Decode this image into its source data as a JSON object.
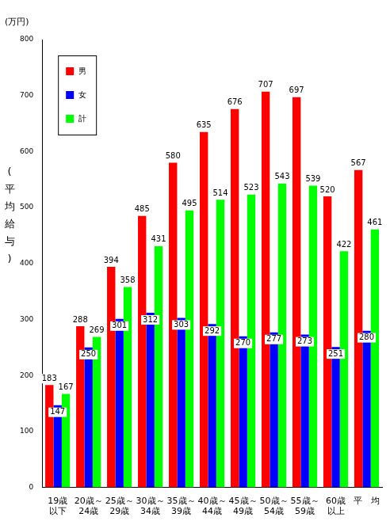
{
  "chart_data": {
    "type": "bar",
    "ylabel": "(平均給与)",
    "yunit": "(万円)",
    "categories": [
      [
        "19歳",
        "以下"
      ],
      [
        "20歳～",
        "24歳"
      ],
      [
        "25歳～",
        "29歳"
      ],
      [
        "30歳～",
        "34歳"
      ],
      [
        "35歳～",
        "39歳"
      ],
      [
        "40歳～",
        "44歳"
      ],
      [
        "45歳～",
        "49歳"
      ],
      [
        "50歳～",
        "54歳"
      ],
      [
        "55歳～",
        "59歳"
      ],
      [
        "60歳",
        "以上"
      ],
      "平　均"
    ],
    "series": [
      {
        "name": "男",
        "color": "#ff0000",
        "values": [
          183,
          288,
          394,
          485,
          580,
          635,
          676,
          707,
          697,
          520,
          567
        ]
      },
      {
        "name": "女",
        "color": "#0000ff",
        "values": [
          147,
          250,
          301,
          312,
          303,
          292,
          270,
          277,
          273,
          251,
          280
        ]
      },
      {
        "name": "計",
        "color": "#00ff00",
        "values": [
          167,
          269,
          358,
          431,
          495,
          514,
          523,
          543,
          539,
          422,
          461
        ]
      }
    ],
    "ylim": [
      0,
      800
    ],
    "yticks": [
      0,
      100,
      200,
      300,
      400,
      500,
      600,
      700,
      800
    ],
    "grid": false,
    "legend": "top-left",
    "data_labels": true
  }
}
